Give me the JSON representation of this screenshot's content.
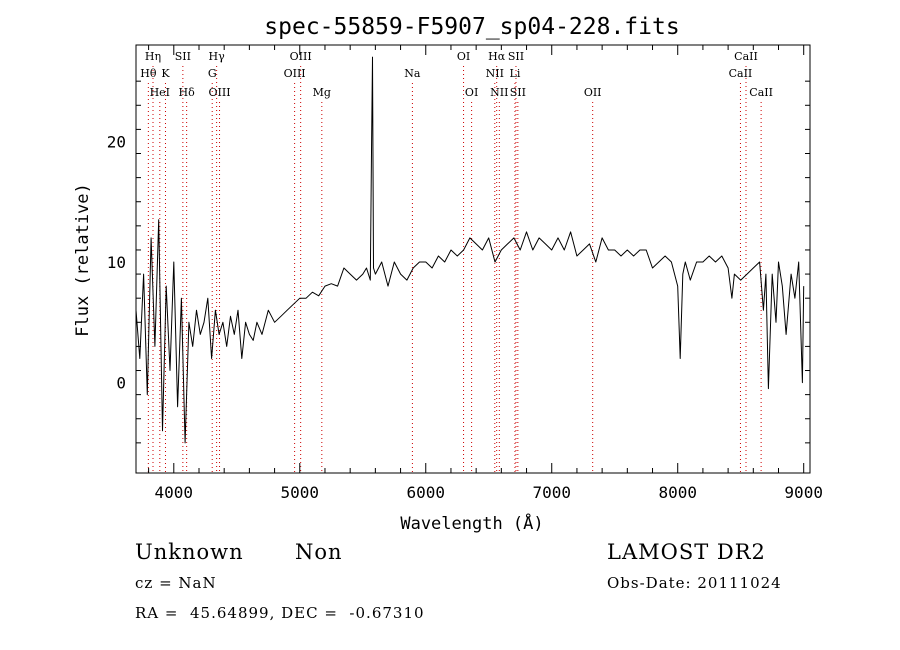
{
  "chart_data": {
    "type": "line",
    "title": "spec-55859-F5907_sp04-228.fits",
    "xlabel": "Wavelength (Å)",
    "ylabel": "Flux (relative)",
    "xlim": [
      3700,
      9050
    ],
    "ylim": [
      -7.5,
      28
    ],
    "x_ticks": [
      4000,
      5000,
      6000,
      7000,
      8000,
      9000
    ],
    "y_ticks": [
      0,
      10,
      20
    ],
    "series": [
      {
        "name": "flux",
        "x": [
          3700,
          3730,
          3760,
          3790,
          3820,
          3850,
          3880,
          3910,
          3940,
          3970,
          4000,
          4030,
          4060,
          4090,
          4120,
          4150,
          4180,
          4210,
          4240,
          4270,
          4300,
          4330,
          4360,
          4390,
          4420,
          4450,
          4480,
          4510,
          4540,
          4570,
          4600,
          4630,
          4660,
          4700,
          4750,
          4800,
          4850,
          4900,
          4950,
          5000,
          5050,
          5100,
          5150,
          5200,
          5250,
          5300,
          5350,
          5400,
          5450,
          5500,
          5530,
          5560,
          5570,
          5577,
          5585,
          5600,
          5650,
          5700,
          5750,
          5800,
          5850,
          5900,
          5950,
          6000,
          6050,
          6100,
          6150,
          6200,
          6250,
          6300,
          6350,
          6400,
          6450,
          6500,
          6550,
          6600,
          6650,
          6700,
          6750,
          6800,
          6850,
          6900,
          6950,
          7000,
          7050,
          7100,
          7150,
          7200,
          7250,
          7300,
          7350,
          7400,
          7450,
          7500,
          7550,
          7600,
          7650,
          7700,
          7750,
          7800,
          7850,
          7900,
          7950,
          8000,
          8020,
          8040,
          8060,
          8100,
          8150,
          8200,
          8250,
          8300,
          8350,
          8400,
          8430,
          8450,
          8500,
          8550,
          8600,
          8650,
          8680,
          8700,
          8720,
          8750,
          8780,
          8800,
          8830,
          8860,
          8900,
          8930,
          8960,
          8990,
          9000
        ],
        "values": [
          6,
          2,
          9,
          -1,
          12,
          3,
          13.5,
          -4,
          8,
          1,
          10,
          -2,
          7,
          -5,
          5,
          3,
          6,
          4,
          5,
          7,
          2,
          6,
          4,
          5,
          3,
          5.5,
          4,
          6,
          2,
          5,
          4,
          3.5,
          5,
          4,
          6,
          5,
          5.5,
          6,
          6.5,
          7,
          7,
          7.5,
          7.2,
          8,
          8.2,
          8,
          9.5,
          9,
          8.5,
          9,
          9.5,
          8.5,
          20,
          27,
          9.5,
          9,
          10,
          8,
          10,
          9,
          8.5,
          9.5,
          10,
          10,
          9.5,
          10.5,
          10,
          11,
          10.5,
          11,
          12,
          11.5,
          11,
          12,
          10,
          11,
          11.5,
          12,
          11,
          12.5,
          11,
          12,
          11.5,
          11,
          12,
          11,
          12.5,
          10.5,
          11,
          11.5,
          10,
          12,
          11,
          11,
          10.5,
          11,
          10.5,
          11,
          11,
          9.5,
          10,
          10.5,
          10,
          8,
          2,
          9,
          10,
          8.5,
          10,
          10,
          10.5,
          10,
          10.5,
          9.5,
          7,
          9,
          8.5,
          9,
          9.5,
          10,
          6,
          9,
          -0.5,
          9,
          5,
          10,
          8,
          4,
          9,
          7,
          10,
          0,
          8
        ]
      }
    ],
    "lines": [
      {
        "label": "Hη",
        "wavelength": 3835,
        "row": 1
      },
      {
        "label": "Hθ",
        "wavelength": 3798,
        "row": 2
      },
      {
        "label": "K",
        "wavelength": 3934,
        "row": 2
      },
      {
        "label": "HeI",
        "wavelength": 3889,
        "row": 3
      },
      {
        "label": "SII",
        "wavelength": 4072,
        "row": 1
      },
      {
        "label": "Hδ",
        "wavelength": 4102,
        "row": 3
      },
      {
        "label": "Hγ",
        "wavelength": 4340,
        "row": 1
      },
      {
        "label": "G",
        "wavelength": 4305,
        "row": 2
      },
      {
        "label": "OIII",
        "wavelength": 4363,
        "row": 3
      },
      {
        "label": "OIII",
        "wavelength": 5007,
        "row": 1
      },
      {
        "label": "OIII",
        "wavelength": 4959,
        "row": 2
      },
      {
        "label": "Mg",
        "wavelength": 5175,
        "row": 3
      },
      {
        "label": "Na",
        "wavelength": 5894,
        "row": 2
      },
      {
        "label": "OI",
        "wavelength": 6300,
        "row": 1
      },
      {
        "label": "OI",
        "wavelength": 6364,
        "row": 3
      },
      {
        "label": "Hα",
        "wavelength": 6563,
        "row": 1
      },
      {
        "label": "SII",
        "wavelength": 6716,
        "row": 1
      },
      {
        "label": "NII",
        "wavelength": 6548,
        "row": 2
      },
      {
        "label": "Li",
        "wavelength": 6708,
        "row": 2
      },
      {
        "label": "NII",
        "wavelength": 6584,
        "row": 3
      },
      {
        "label": "SII",
        "wavelength": 6731,
        "row": 3
      },
      {
        "label": "OII",
        "wavelength": 7325,
        "row": 3
      },
      {
        "label": "CaII",
        "wavelength": 8542,
        "row": 1
      },
      {
        "label": "CaII",
        "wavelength": 8498,
        "row": 2
      },
      {
        "label": "CaII",
        "wavelength": 8662,
        "row": 3
      }
    ],
    "line_color": "#cc0000",
    "grid": false
  },
  "info": {
    "object_class": "Unknown",
    "subclass": "Non",
    "survey": "LAMOST DR2",
    "redshift_text": "cz = NaN",
    "obs_date_text": "Obs-Date: 20111024",
    "coords_text": "RA =  45.64899, DEC =  -0.67310"
  }
}
